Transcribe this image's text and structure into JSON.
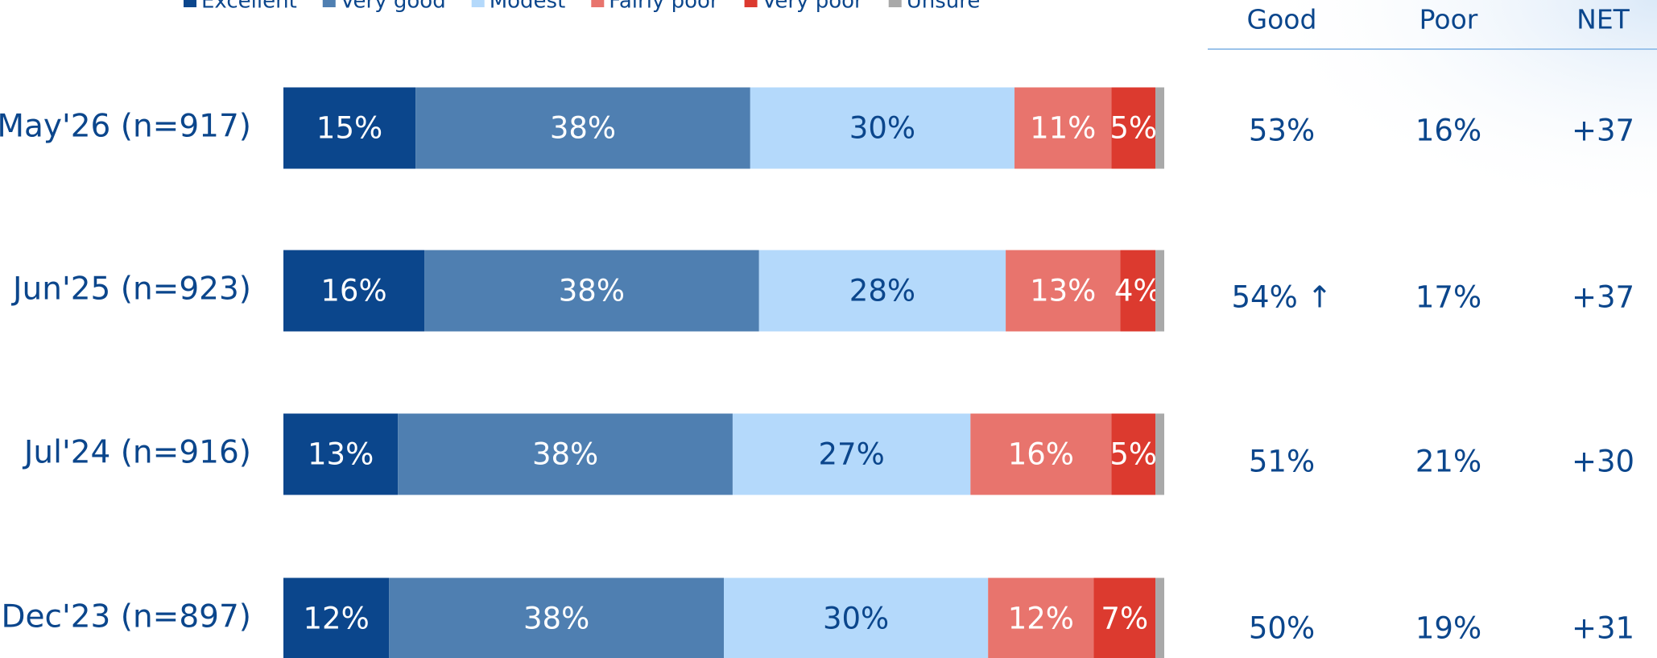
{
  "chart_data": {
    "type": "stacked-bar-horizontal",
    "categories": [
      "May'26 (n=917)",
      "Jun'25 (n=923)",
      "Jul'24 (n=916)",
      "Dec'23 (n=897)"
    ],
    "xlim": [
      0,
      100
    ],
    "legend": "top",
    "series": [
      {
        "name": "Excellent",
        "color": "#0b468c",
        "label_color": "#ffffff",
        "values": [
          15,
          16,
          13,
          12
        ],
        "value_labels": [
          "15%",
          "16%",
          "13%",
          "12%"
        ]
      },
      {
        "name": "Very good",
        "color": "#4f7fb1",
        "label_color": "#ffffff",
        "values": [
          38,
          38,
          38,
          38
        ],
        "value_labels": [
          "38%",
          "38%",
          "38%",
          "38%"
        ]
      },
      {
        "name": "Modest",
        "color": "#b4d9fb",
        "label_color": "#0b468c",
        "values": [
          30,
          28,
          27,
          30
        ],
        "value_labels": [
          "30%",
          "28%",
          "27%",
          "30%"
        ]
      },
      {
        "name": "Fairly poor",
        "color": "#e8746d",
        "label_color": "#ffffff",
        "values": [
          11,
          13,
          16,
          12
        ],
        "value_labels": [
          "11%",
          "13%",
          "16%",
          "12%"
        ]
      },
      {
        "name": "Very poor",
        "color": "#dc3a2f",
        "label_color": "#ffffff",
        "values": [
          5,
          4,
          5,
          7
        ],
        "value_labels": [
          "5%",
          "4%",
          "5%",
          "7%"
        ]
      },
      {
        "name": "Unsure",
        "color": "#a9a9a9",
        "values": [
          1,
          1,
          1,
          1
        ]
      }
    ],
    "table": {
      "columns": [
        "Good",
        "Poor",
        "NET"
      ],
      "rows": [
        [
          "53%",
          "16%",
          "+37"
        ],
        [
          "54% ↑",
          "17%",
          "+37"
        ],
        [
          "51%",
          "21%",
          "+30"
        ],
        [
          "50%",
          "19%",
          "+31"
        ]
      ]
    }
  }
}
